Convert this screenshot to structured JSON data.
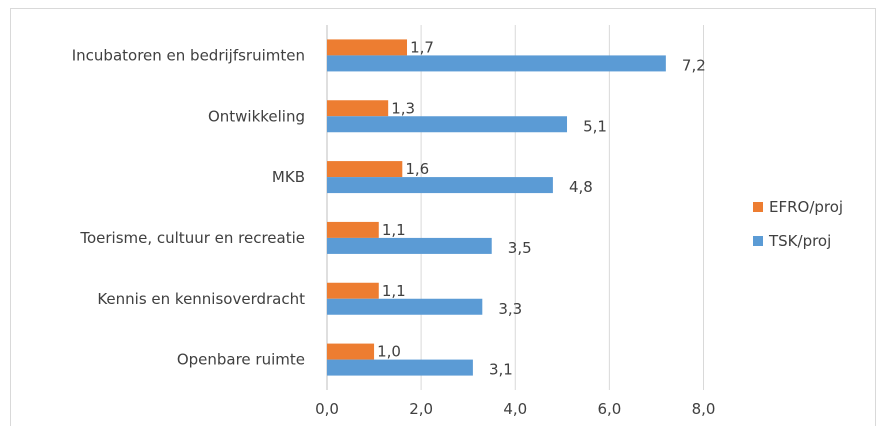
{
  "chart_data": {
    "type": "bar",
    "orientation": "horizontal",
    "categories": [
      "Incubatoren en bedrijfsruimten",
      "Ontwikkeling",
      "MKB",
      "Toerisme, cultuur en recreatie",
      "Kennis en kennisoverdracht",
      "Openbare ruimte"
    ],
    "series": [
      {
        "name": "EFRO/proj",
        "color": "#ed7d31",
        "values": [
          1.7,
          1.3,
          1.6,
          1.1,
          1.1,
          1.0
        ],
        "labels": [
          "1,7",
          "1,3",
          "1,6",
          "1,1",
          "1,1",
          "1,0"
        ]
      },
      {
        "name": "TSK/proj",
        "color": "#5b9bd5",
        "values": [
          7.2,
          5.1,
          4.8,
          3.5,
          3.3,
          3.1
        ],
        "labels": [
          "7,2",
          "5,1",
          "4,8",
          "3,5",
          "3,3",
          "3,1"
        ]
      }
    ],
    "xlim": [
      0,
      8
    ],
    "xticks": [
      0,
      2,
      4,
      6,
      8
    ],
    "xtick_labels": [
      "0,0",
      "2,0",
      "4,0",
      "6,0",
      "8,0"
    ],
    "grid": true,
    "legend_position": "right"
  }
}
